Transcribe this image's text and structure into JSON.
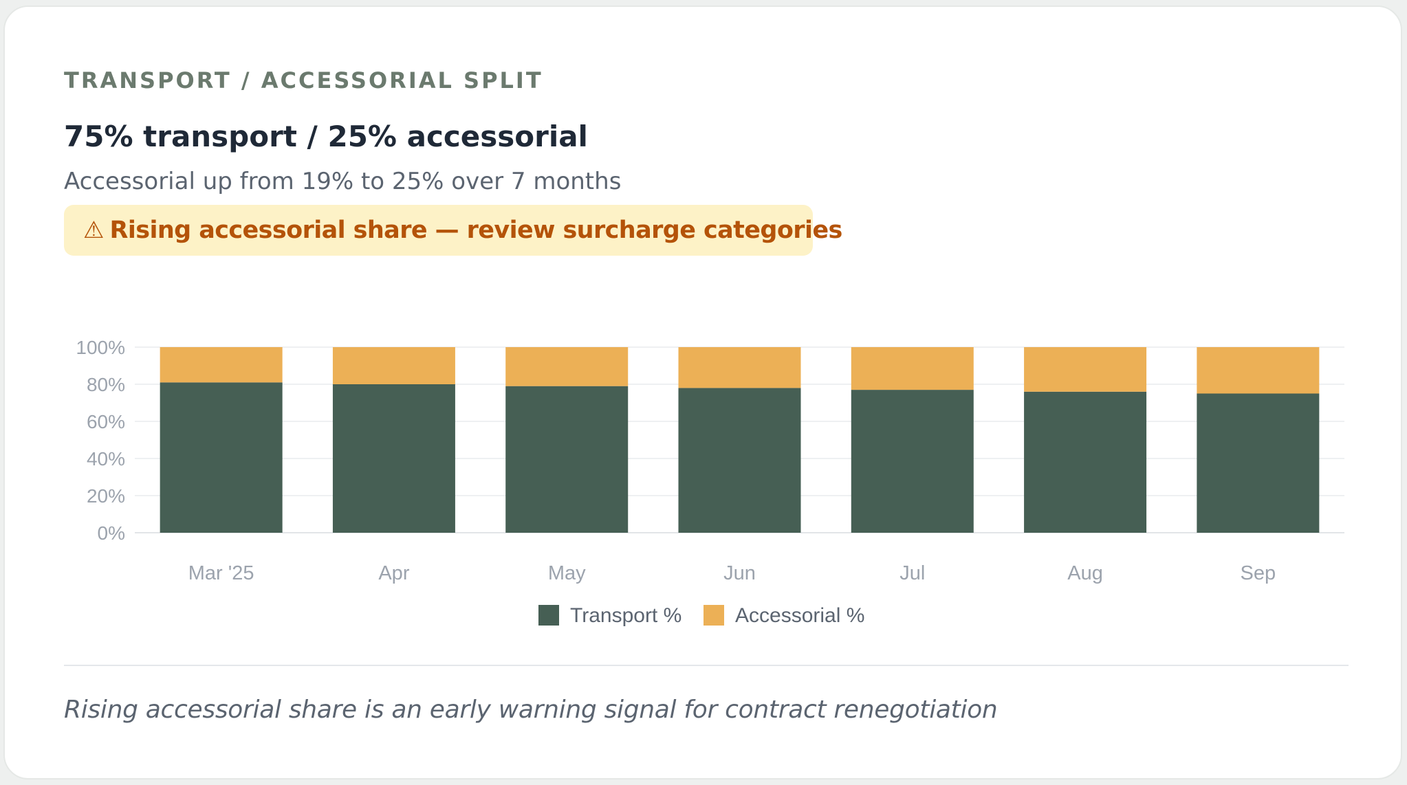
{
  "card": {
    "eyebrow": "TRANSPORT / ACCESSORIAL SPLIT",
    "headline": "75% transport / 25% accessorial",
    "subhead": "Accessorial up from 19% to 25% over 7 months",
    "alert": {
      "icon": "warning-icon",
      "icon_glyph": "⚠",
      "text": "Rising accessorial share — review surcharge categories",
      "background": "#fdf2c7",
      "color": "#b45309"
    },
    "footnote": "Rising accessorial share is an early warning signal for contract renegotiation"
  },
  "chart_data": {
    "type": "bar",
    "stacked": true,
    "categories": [
      "Mar '25",
      "Apr",
      "May",
      "Jun",
      "Jul",
      "Aug",
      "Sep"
    ],
    "series": [
      {
        "name": "Transport %",
        "color": "#465f54",
        "values": [
          81,
          80,
          79,
          78,
          77,
          76,
          75
        ]
      },
      {
        "name": "Accessorial %",
        "color": "#ecb056",
        "values": [
          19,
          20,
          21,
          22,
          23,
          24,
          25
        ]
      }
    ],
    "y_ticks": [
      "0%",
      "20%",
      "40%",
      "60%",
      "80%",
      "100%"
    ],
    "ylim": [
      0,
      100
    ],
    "grid": true,
    "legend_position": "bottom-center"
  }
}
